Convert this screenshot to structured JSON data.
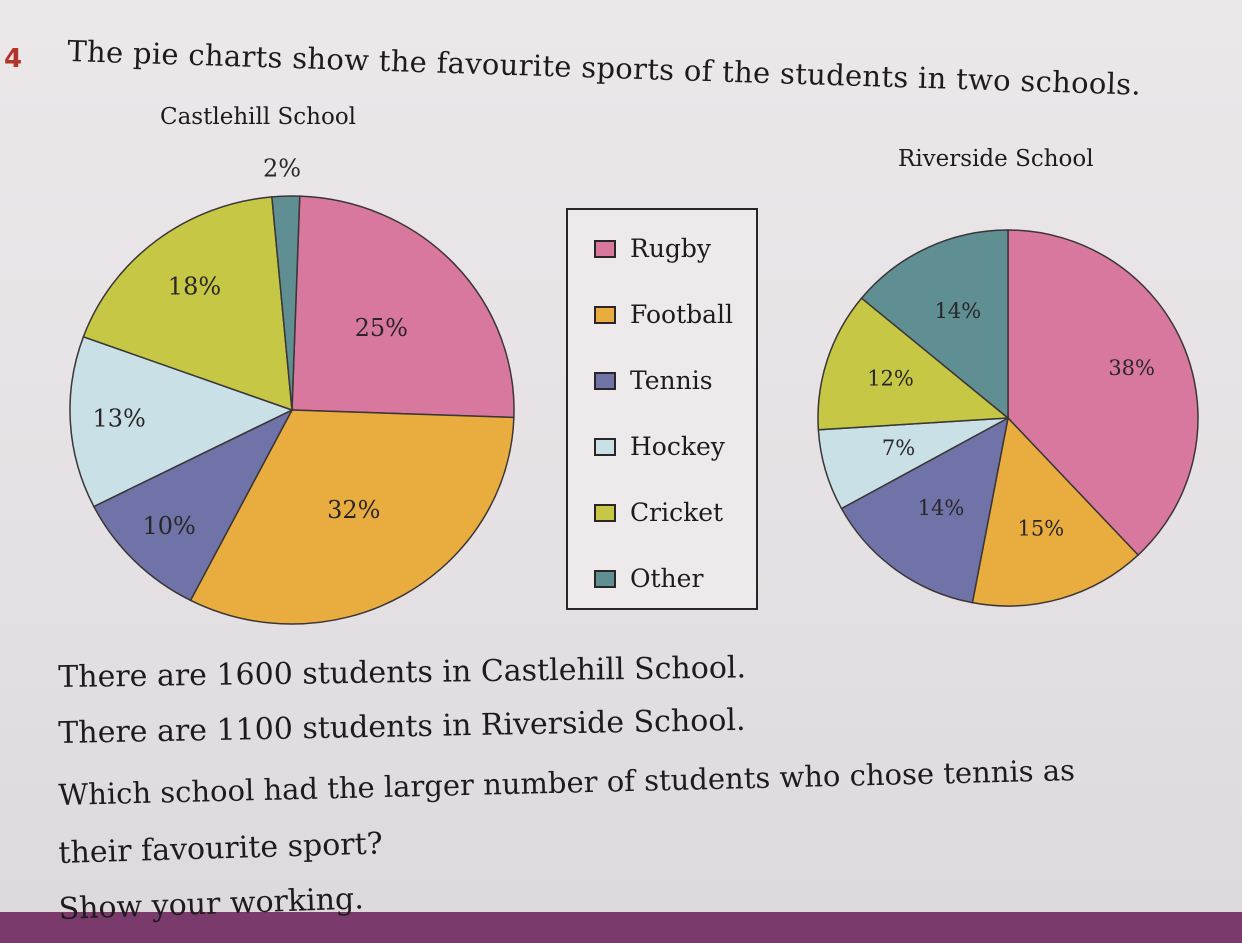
{
  "question": {
    "number": "4",
    "title": "The pie charts show the favourite sports of the students in two schools.",
    "lines": [
      "There are 1600 students in Castlehill School.",
      "There are 1100 students in Riverside School.",
      "Which school had the larger number of students who chose tennis as",
      "their favourite sport?",
      "Show your working."
    ]
  },
  "legend": {
    "items": [
      {
        "label": "Rugby",
        "color": "#d9789f"
      },
      {
        "label": "Football",
        "color": "#e9ad3f"
      },
      {
        "label": "Tennis",
        "color": "#6f73a8"
      },
      {
        "label": "Hockey",
        "color": "#c9e0e6"
      },
      {
        "label": "Cricket",
        "color": "#c5c745"
      },
      {
        "label": "Other",
        "color": "#5f8f93"
      }
    ]
  },
  "chart_data": [
    {
      "type": "pie",
      "title": "Castlehill School",
      "categories": [
        "Rugby",
        "Football",
        "Tennis",
        "Hockey",
        "Cricket",
        "Other"
      ],
      "values": [
        25,
        32,
        10,
        13,
        18,
        2
      ],
      "labels": [
        "25%",
        "32%",
        "10%",
        "13%",
        "18%",
        "2%"
      ]
    },
    {
      "type": "pie",
      "title": "Riverside School",
      "categories": [
        "Rugby",
        "Football",
        "Tennis",
        "Hockey",
        "Cricket",
        "Other"
      ],
      "values": [
        38,
        15,
        14,
        7,
        12,
        14
      ],
      "labels": [
        "38%",
        "15%",
        "14%",
        "7%",
        "12%",
        "14%"
      ]
    }
  ]
}
